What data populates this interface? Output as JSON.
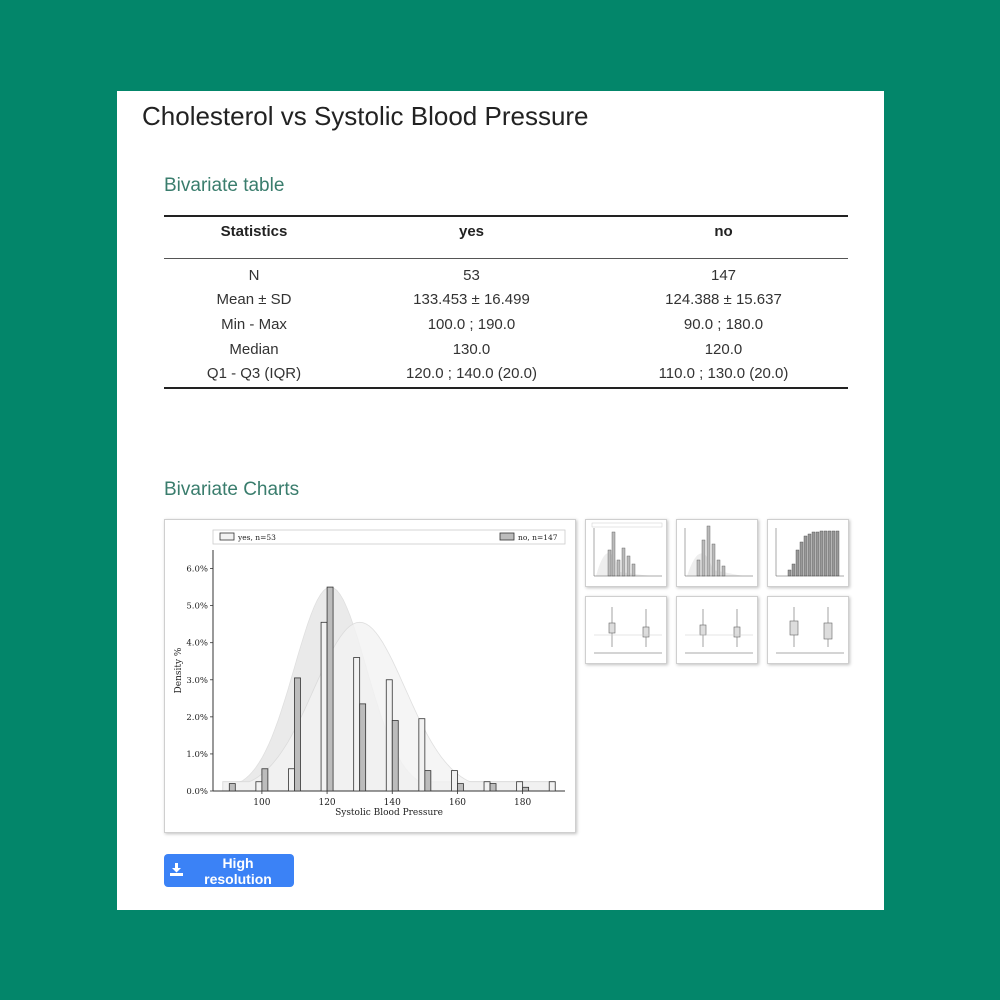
{
  "page": {
    "title": "Cholesterol vs Systolic Blood Pressure",
    "colors": {
      "background": "#03866a",
      "section_title": "#3a7d6d",
      "button": "#3b82f6"
    }
  },
  "table_section": {
    "title": "Bivariate table"
  },
  "table": {
    "headers": [
      "Statistics",
      "yes",
      "no"
    ],
    "rows": [
      [
        "N",
        "53",
        "147"
      ],
      [
        "Mean ± SD",
        "133.453 ± 16.499",
        "124.388 ± 15.637"
      ],
      [
        "Min - Max",
        "100.0 ; 190.0",
        "90.0 ; 180.0"
      ],
      [
        "Median",
        "130.0",
        "120.0"
      ],
      [
        "Q1 - Q3 (IQR)",
        "120.0 ; 140.0 (20.0)",
        "110.0 ; 130.0 (20.0)"
      ]
    ]
  },
  "charts_section": {
    "title": "Bivariate Charts"
  },
  "button": {
    "label": "High resolution",
    "icon": "download-icon"
  },
  "chart_data": {
    "type": "bar",
    "xlabel": "Systolic Blood Pressure",
    "ylabel": "Density %",
    "xlim": [
      85,
      193
    ],
    "ylim": [
      0,
      6.5
    ],
    "xticks": [
      100,
      120,
      140,
      160,
      180
    ],
    "yticks": [
      0,
      1,
      2,
      3,
      4,
      5,
      6
    ],
    "ytick_labels": [
      "0.0%",
      "1.0%",
      "2.0%",
      "3.0%",
      "4.0%",
      "5.0%",
      "6.0%"
    ],
    "legend": "top",
    "series": [
      {
        "name": "yes, n=53",
        "color": "#f2f2f2",
        "x": [
          100,
          110,
          120,
          130,
          140,
          150,
          160,
          170,
          180,
          190
        ],
        "values": [
          0.25,
          0.6,
          4.55,
          3.6,
          3.0,
          1.95,
          0.55,
          0.25,
          0.25,
          0.25
        ]
      },
      {
        "name": "no, n=147",
        "color": "#bcbcbc",
        "x": [
          90,
          100,
          110,
          120,
          130,
          140,
          150,
          160,
          170,
          180
        ],
        "values": [
          0.2,
          0.6,
          3.05,
          5.5,
          2.35,
          1.9,
          0.55,
          0.2,
          0.2,
          0.1
        ]
      }
    ]
  },
  "thumbnails": [
    "histogram-density",
    "histogram-density",
    "cumulative-histogram",
    "boxplot",
    "boxplot",
    "boxplot"
  ]
}
